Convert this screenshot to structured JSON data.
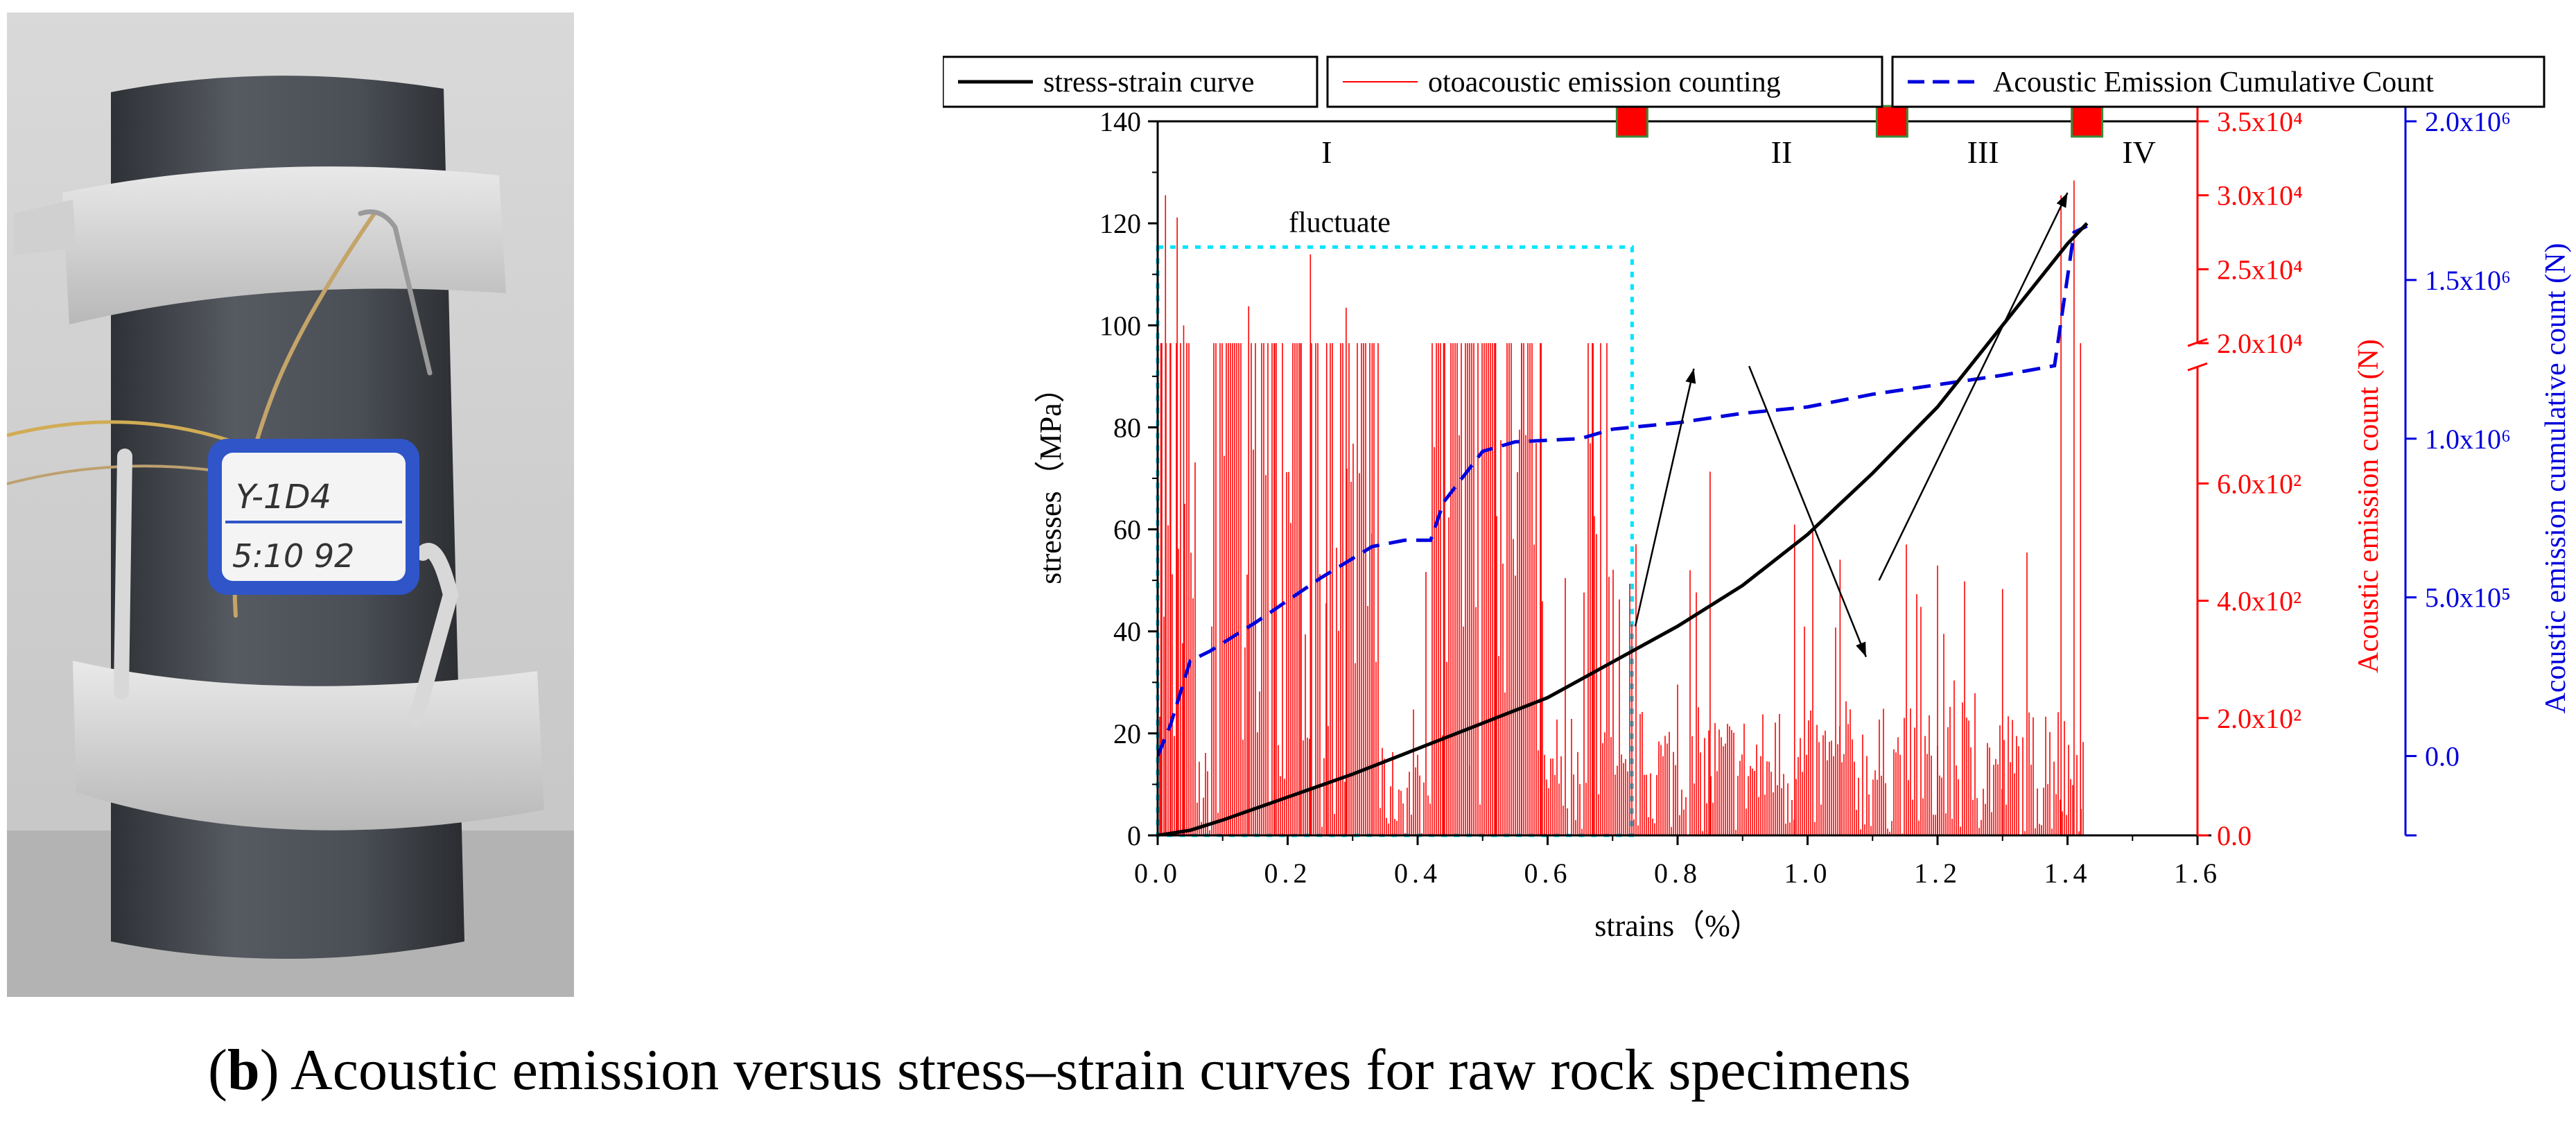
{
  "photo": {
    "label_line1": "Y-1D4",
    "label_line2": "5:10 92"
  },
  "caption": {
    "letter": "b",
    "text": ") Acoustic emission versus stress–strain curves for raw rock specimens",
    "open_paren": "("
  },
  "chart_data": {
    "type": "line",
    "xlabel": "strains（%）",
    "ylabel_left": "stresses（MPa）",
    "ylabel_right1": "Acoustic emission count (N)",
    "ylabel_right2": "Acoustic emission cumulative count (N)",
    "xlim": [
      0.0,
      1.6
    ],
    "x_ticks": [
      "0.0",
      "0.2",
      "0.4",
      "0.6",
      "0.8",
      "1.0",
      "1.2",
      "1.4",
      "1.6"
    ],
    "ylim_left": [
      0,
      140
    ],
    "y_ticks_left": [
      "0",
      "20",
      "40",
      "60",
      "80",
      "100",
      "120",
      "140"
    ],
    "right1_ticks_lower": [
      "0.0",
      "2.0x10²",
      "4.0x10²",
      "6.0x10²"
    ],
    "right1_ticks_upper": [
      "2.0x10⁴",
      "2.5x10⁴",
      "3.0x10⁴",
      "3.5x10⁴"
    ],
    "right1_lower_range": [
      0,
      800
    ],
    "right1_upper_range": [
      20000,
      35000
    ],
    "right2_ticks": [
      "0.0",
      "5.0x10⁵",
      "1.0x10⁶",
      "1.5x10⁶",
      "2.0x10⁶"
    ],
    "right2_range": [
      -250000,
      2000000
    ],
    "legend": [
      {
        "name": "stress-strain curve",
        "color": "#000000",
        "style": "solid"
      },
      {
        "name": "otoacoustic emission counting",
        "color": "#ff0000",
        "style": "solid"
      },
      {
        "name": "Acoustic Emission Cumulative Count",
        "color": "#0000dd",
        "style": "dashed"
      }
    ],
    "stages": [
      "I",
      "II",
      "III",
      "IV"
    ],
    "stage_boundaries": [
      0.73,
      1.13,
      1.43
    ],
    "annotation": "fluctuate",
    "stress_strain": {
      "x": [
        0.0,
        0.05,
        0.1,
        0.2,
        0.3,
        0.4,
        0.5,
        0.6,
        0.7,
        0.8,
        0.9,
        1.0,
        1.1,
        1.2,
        1.3,
        1.4,
        1.43
      ],
      "y": [
        0,
        1,
        3,
        7.5,
        12,
        17,
        22,
        27,
        34,
        41,
        49,
        59,
        71,
        84,
        100,
        116,
        120
      ]
    },
    "cumulative": {
      "x": [
        0.0,
        0.02,
        0.05,
        0.08,
        0.15,
        0.25,
        0.33,
        0.38,
        0.42,
        0.44,
        0.5,
        0.55,
        0.65,
        0.7,
        0.8,
        0.9,
        1.0,
        1.1,
        1.2,
        1.3,
        1.38,
        1.41,
        1.43
      ],
      "y": [
        0,
        100000,
        300000,
        330000,
        420000,
        560000,
        660000,
        680000,
        680000,
        800000,
        960000,
        990000,
        1000000,
        1030000,
        1050000,
        1080000,
        1100000,
        1140000,
        1170000,
        1200000,
        1230000,
        1650000,
        1670000
      ]
    },
    "ae_count_peaks": [
      {
        "x": 0.005,
        "y": 20000
      },
      {
        "x": 0.012,
        "y": 30000
      },
      {
        "x": 0.02,
        "y": 20000
      },
      {
        "x": 0.03,
        "y": 28500
      },
      {
        "x": 0.04,
        "y": 21200
      },
      {
        "x": 0.14,
        "y": 22500
      },
      {
        "x": 0.235,
        "y": 26000
      },
      {
        "x": 0.29,
        "y": 22400
      },
      {
        "x": 0.18,
        "y": 20000
      },
      {
        "x": 0.22,
        "y": 20000
      },
      {
        "x": 0.26,
        "y": 20000
      },
      {
        "x": 0.33,
        "y": 20000
      },
      {
        "x": 0.44,
        "y": 20000
      },
      {
        "x": 0.48,
        "y": 20000
      },
      {
        "x": 0.52,
        "y": 20000
      },
      {
        "x": 0.56,
        "y": 20000
      },
      {
        "x": 0.59,
        "y": 20000
      },
      {
        "x": 0.67,
        "y": 20000
      },
      {
        "x": 0.85,
        "y": 620
      },
      {
        "x": 0.98,
        "y": 530
      },
      {
        "x": 1.05,
        "y": 470
      },
      {
        "x": 1.2,
        "y": 460
      },
      {
        "x": 1.3,
        "y": 420
      },
      {
        "x": 1.39,
        "y": 30000
      },
      {
        "x": 1.41,
        "y": 31000
      },
      {
        "x": 1.42,
        "y": 20000
      }
    ]
  }
}
